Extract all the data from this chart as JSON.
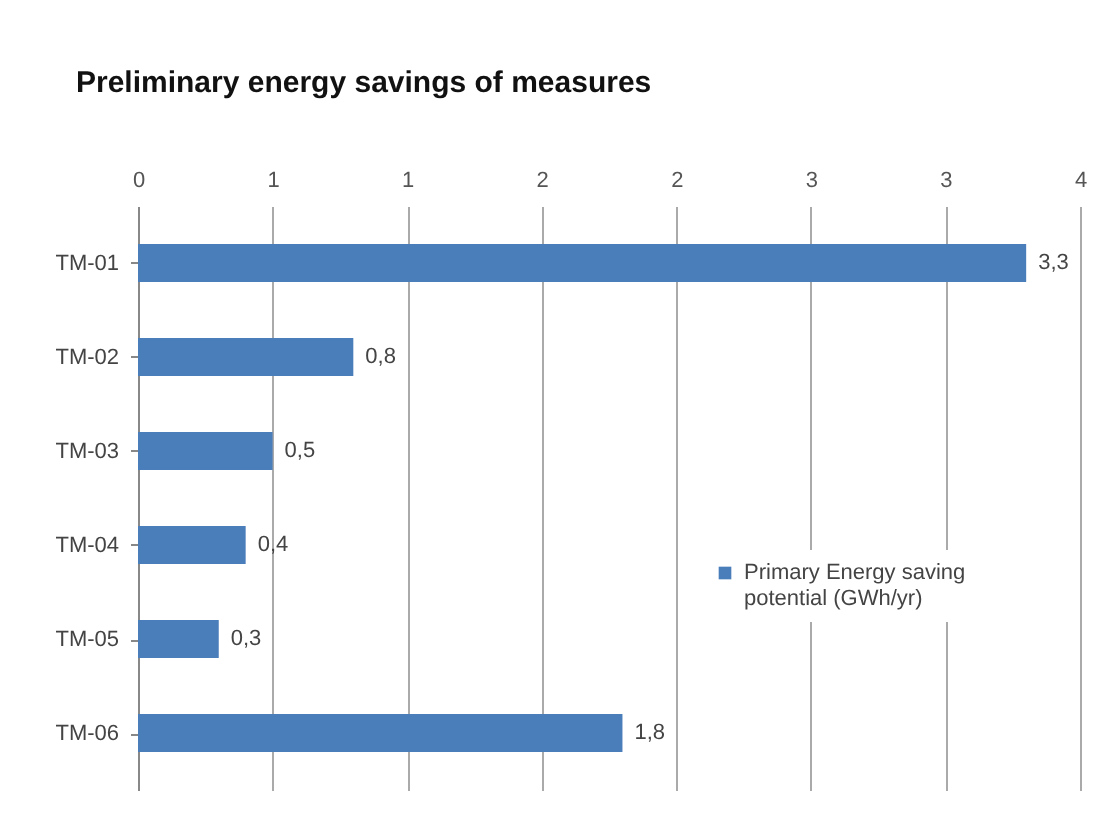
{
  "chart_data": {
    "type": "bar",
    "orientation": "horizontal",
    "title": "Preliminary energy savings of measures",
    "categories": [
      "TM-01",
      "TM-02",
      "TM-03",
      "TM-04",
      "TM-05",
      "TM-06"
    ],
    "series": [
      {
        "name": "Primary Energy saving potential (GWh/yr)",
        "color": "#4a7ebb",
        "values": [
          3.3,
          0.8,
          0.5,
          0.4,
          0.3,
          1.8
        ]
      }
    ],
    "value_labels": [
      "3,3",
      "0,8",
      "0,5",
      "0,4",
      "0,3",
      "1,8"
    ],
    "xlim": [
      0,
      3.5
    ],
    "xticks": [
      0,
      {
        "value": 0.5,
        "label": "1"
      },
      1,
      {
        "value": 1.5,
        "label": "2"
      },
      2,
      {
        "value": 2.5,
        "label": "3"
      },
      3,
      {
        "value": 3.5,
        "label": "4"
      }
    ],
    "grid": "x",
    "legend": "right"
  }
}
